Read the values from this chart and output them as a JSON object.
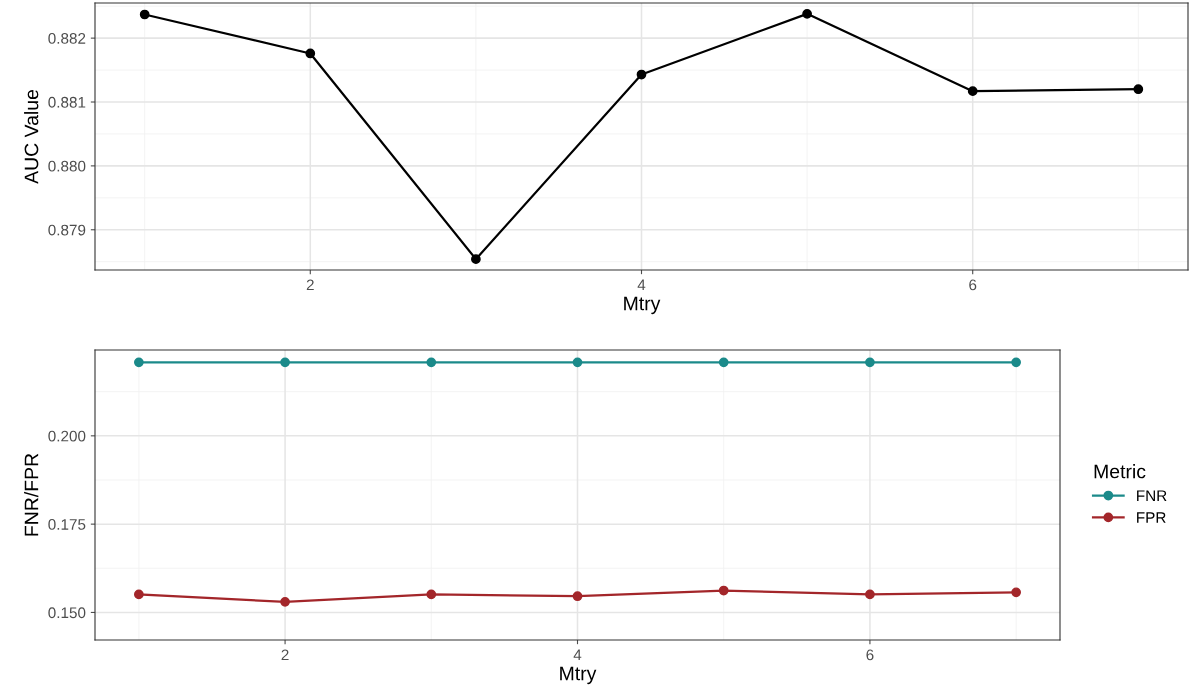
{
  "chart_data": [
    {
      "type": "line",
      "xlabel": "Mtry",
      "ylabel": "AUC Value",
      "x": [
        1,
        2,
        3,
        4,
        5,
        6,
        7
      ],
      "series": [
        {
          "color": "#000000",
          "values": [
            0.88237,
            0.88176,
            0.87854,
            0.88143,
            0.88238,
            0.88117,
            0.8812
          ]
        }
      ],
      "xlim": [
        0.7,
        7.3
      ],
      "xticks": [
        2,
        4,
        6
      ],
      "ylim": [
        0.87837,
        0.88255
      ],
      "yticks": [
        0.879,
        {
          "value": 0.88,
          "label": "0.880"
        },
        0.881,
        0.882
      ],
      "grid": true,
      "marker": "circle",
      "line_style": "solid",
      "legend": false
    },
    {
      "type": "line",
      "xlabel": "Mtry",
      "ylabel": "FNR/FPR",
      "legend_title": "Metric",
      "x": [
        1,
        2,
        3,
        4,
        5,
        6,
        7
      ],
      "series": [
        {
          "name": "FNR",
          "color": "#1b8a8a",
          "values": [
            0.2208,
            0.2208,
            0.2208,
            0.2208,
            0.2208,
            0.2208,
            0.2208
          ]
        },
        {
          "name": "FPR",
          "color": "#a3262a",
          "values": [
            0.1551,
            0.153,
            0.1551,
            0.1546,
            0.1562,
            0.1551,
            0.1557
          ]
        }
      ],
      "xlim": [
        0.7,
        7.3
      ],
      "xticks": [
        2,
        4,
        6
      ],
      "ylim": [
        0.1422,
        0.2243
      ],
      "yticks": [
        {
          "value": 0.15,
          "label": "0.150"
        },
        0.175,
        {
          "value": 0.2,
          "label": "0.200"
        }
      ],
      "grid": true,
      "marker": "circle",
      "line_style": "solid",
      "legend": "right"
    }
  ]
}
